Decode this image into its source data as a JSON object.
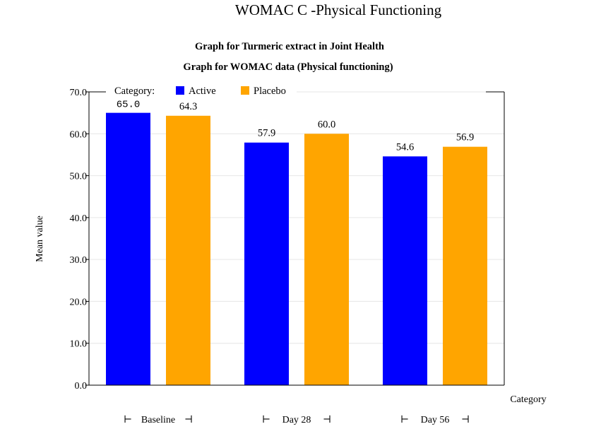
{
  "page_title": "WOMAC C -Physical Functioning",
  "chart_data": {
    "type": "bar",
    "title": "Graph for Turmeric extract in Joint Health",
    "subtitle": "Graph for WOMAC data (Physical functioning)",
    "xlabel": "Category",
    "ylabel": "Mean value",
    "legend_title": "Category:",
    "legend_position": "top-left",
    "categories": [
      "Baseline",
      "Day 28",
      "Day 56"
    ],
    "series": [
      {
        "name": "Active",
        "color": "#0000ff",
        "values": [
          65.0,
          57.9,
          54.6
        ],
        "labels": [
          "65.0",
          "57.9",
          "54.6"
        ]
      },
      {
        "name": "Placebo",
        "color": "#ffa500",
        "values": [
          64.3,
          60.0,
          56.9
        ],
        "labels": [
          "64.3",
          "60.0",
          "56.9"
        ]
      }
    ],
    "ylim": [
      0,
      70
    ],
    "yticks": [
      0,
      10,
      20,
      30,
      40,
      50,
      60,
      70
    ],
    "ytick_labels": [
      "0.0",
      "10.0",
      "20.0",
      "30.0",
      "40.0",
      "50.0",
      "60.0",
      "70.0"
    ],
    "grid": true
  }
}
